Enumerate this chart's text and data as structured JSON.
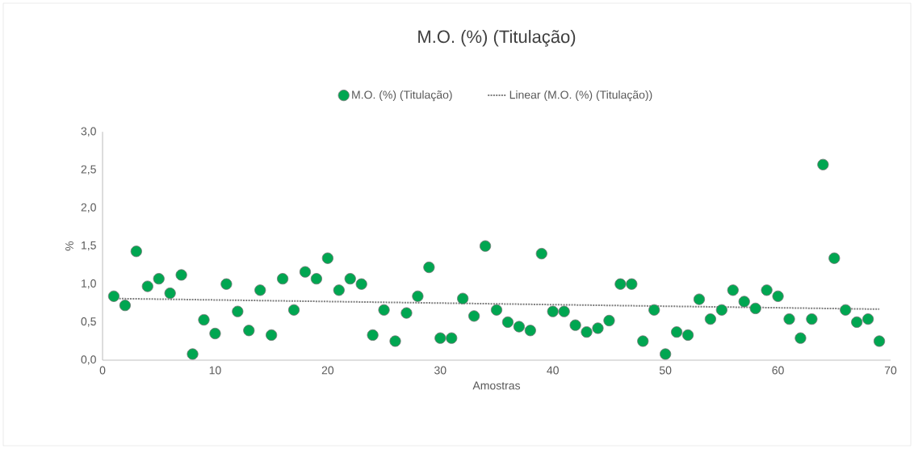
{
  "chart_data": {
    "type": "scatter",
    "title": "M.O. (%) (Titulação)",
    "xlabel": "Amostras",
    "ylabel": "%",
    "x": [
      1,
      2,
      3,
      4,
      5,
      6,
      7,
      8,
      9,
      10,
      11,
      12,
      13,
      14,
      15,
      16,
      17,
      18,
      19,
      20,
      21,
      22,
      23,
      24,
      25,
      26,
      27,
      28,
      29,
      30,
      31,
      32,
      33,
      34,
      35,
      36,
      37,
      38,
      39,
      40,
      41,
      42,
      43,
      44,
      45,
      46,
      47,
      48,
      49,
      50,
      51,
      52,
      53,
      54,
      55,
      56,
      57,
      58,
      59,
      60,
      61,
      62,
      63,
      64,
      65,
      66,
      67,
      68,
      69
    ],
    "series": [
      {
        "name": "M.O. (%) (Titulação)",
        "color": "#00a651",
        "marker": "circle",
        "values": [
          0.84,
          0.72,
          1.43,
          0.97,
          1.07,
          0.88,
          1.12,
          0.08,
          0.53,
          0.35,
          1.0,
          0.64,
          0.39,
          0.92,
          0.33,
          1.07,
          0.66,
          1.16,
          1.07,
          1.34,
          0.92,
          1.07,
          1.0,
          0.33,
          0.66,
          0.25,
          0.62,
          0.84,
          1.22,
          0.29,
          0.29,
          0.81,
          0.58,
          1.5,
          0.66,
          0.5,
          0.44,
          0.39,
          1.4,
          0.64,
          0.64,
          0.46,
          0.37,
          0.42,
          0.52,
          1.0,
          1.0,
          0.25,
          0.66,
          0.08,
          0.37,
          0.33,
          0.8,
          0.54,
          0.66,
          0.92,
          0.77,
          0.68,
          0.92,
          0.84,
          0.54,
          0.29,
          0.54,
          2.57,
          1.34,
          0.66,
          0.5,
          0.54,
          0.25
        ]
      },
      {
        "name": "Linear (M.O. (%) (Titulação))",
        "type": "line",
        "color": "#7f7f7f",
        "line_style": "dotted",
        "marker": "none",
        "x": [
          1,
          69
        ],
        "values": [
          0.81,
          0.67
        ]
      }
    ],
    "legend": "top",
    "xlim": [
      0,
      70
    ],
    "xticks": [
      0,
      10,
      20,
      30,
      40,
      50,
      60,
      70
    ],
    "ylim": [
      0,
      3
    ],
    "yticks": [
      {
        "value": 0,
        "label": "0,0"
      },
      {
        "value": 0.5,
        "label": "0,5"
      },
      {
        "value": 1,
        "label": "1,0"
      },
      {
        "value": 1.5,
        "label": "1,5"
      },
      {
        "value": 2,
        "label": "2,0"
      },
      {
        "value": 2.5,
        "label": "2,5"
      },
      {
        "value": 3,
        "label": "3,0"
      }
    ]
  }
}
